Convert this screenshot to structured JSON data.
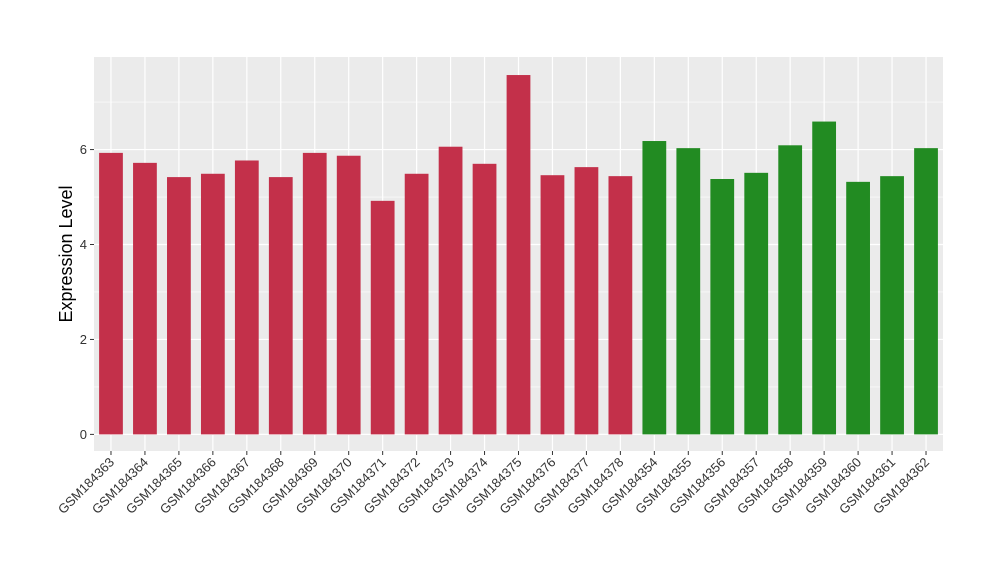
{
  "chart_data": {
    "type": "bar",
    "title": "",
    "xlabel": "",
    "ylabel": "Expression Level",
    "ylim": [
      -0.35,
      7.95
    ],
    "yticks": [
      0,
      2,
      4,
      6
    ],
    "grid": true,
    "legend": "none",
    "background_color": "#ebebeb",
    "grid_color": "#ffffff",
    "series_colors": [
      "#c3304a",
      "#228b22"
    ],
    "categories": [
      "GSM184363",
      "GSM184364",
      "GSM184365",
      "GSM184366",
      "GSM184367",
      "GSM184368",
      "GSM184369",
      "GSM184370",
      "GSM184371",
      "GSM184372",
      "GSM184373",
      "GSM184374",
      "GSM184375",
      "GSM184376",
      "GSM184377",
      "GSM184378",
      "GSM184354",
      "GSM184355",
      "GSM184356",
      "GSM184357",
      "GSM184358",
      "GSM184359",
      "GSM184360",
      "GSM184361",
      "GSM184362"
    ],
    "values": [
      5.93,
      5.72,
      5.42,
      5.49,
      5.77,
      5.42,
      5.93,
      5.87,
      4.92,
      5.49,
      6.06,
      5.7,
      7.57,
      5.46,
      5.63,
      5.44,
      6.18,
      6.03,
      5.38,
      5.51,
      6.09,
      6.59,
      5.32,
      5.44,
      6.03
    ],
    "groups": [
      0,
      0,
      0,
      0,
      0,
      0,
      0,
      0,
      0,
      0,
      0,
      0,
      0,
      0,
      0,
      0,
      1,
      1,
      1,
      1,
      1,
      1,
      1,
      1,
      1
    ]
  }
}
